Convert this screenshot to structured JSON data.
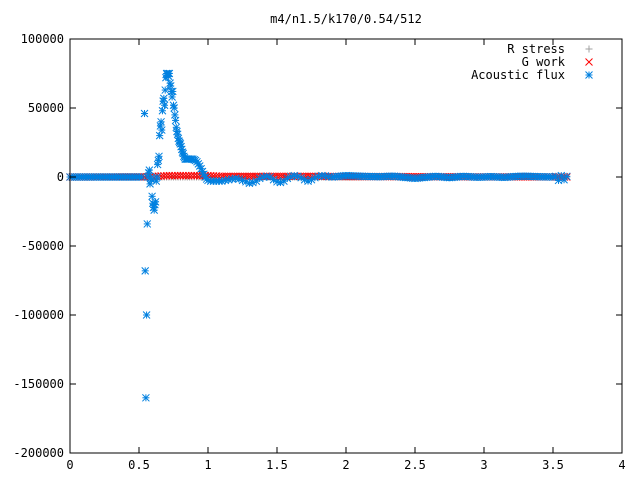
{
  "chart_data": {
    "type": "scatter",
    "title": "m4/n1.5/k170/0.54/512",
    "xlabel": "",
    "ylabel": "",
    "xlim": [
      0,
      4
    ],
    "ylim": [
      -200000,
      100000
    ],
    "xticks": [
      0,
      0.5,
      1,
      1.5,
      2,
      2.5,
      3,
      3.5,
      4
    ],
    "xtick_labels": [
      "0",
      "0.5",
      "1",
      "1.5",
      "2",
      "2.5",
      "3",
      "3.5",
      "4"
    ],
    "yticks": [
      -200000,
      -150000,
      -100000,
      -50000,
      0,
      50000,
      100000
    ],
    "ytick_labels": [
      "-200000",
      "-150000",
      "-100000",
      "-50000",
      "0",
      "50000",
      "100000"
    ],
    "grid": false,
    "legend_position": "top-right",
    "series": [
      {
        "name": "R stress",
        "marker": "plus",
        "color": "#a0a0a0",
        "x": [
          0.0,
          0.2,
          0.4,
          0.5,
          0.6,
          0.8,
          1.0,
          1.5,
          2.0,
          2.5,
          3.0,
          3.5,
          3.6
        ],
        "y": [
          0,
          0,
          0,
          0,
          0,
          0,
          0,
          0,
          0,
          0,
          0,
          0,
          0
        ]
      },
      {
        "name": "G work",
        "marker": "cross",
        "color": "#ff0000",
        "x": [
          0.0,
          0.54,
          0.56,
          0.58,
          0.6,
          0.62,
          0.64,
          0.66,
          0.68,
          0.7,
          0.72,
          0.74,
          0.76,
          0.78,
          0.8,
          0.82,
          0.84,
          0.86,
          0.88,
          0.9,
          0.92,
          0.94,
          0.96,
          0.98,
          1.0,
          1.02,
          1.04,
          1.06,
          1.08,
          1.1,
          1.15,
          1.2,
          1.25,
          1.3,
          1.35,
          1.4,
          1.45,
          1.5,
          1.55,
          1.6,
          1.65,
          1.7,
          1.75,
          1.8,
          1.85,
          1.9,
          2.0,
          2.1,
          2.2,
          2.3,
          2.4,
          2.5,
          2.6,
          2.7,
          2.8,
          2.9,
          3.0,
          3.2,
          3.4,
          3.6
        ],
        "y": [
          0,
          100,
          200,
          300,
          400,
          500,
          600,
          700,
          800,
          900,
          1000,
          1000,
          1000,
          1000,
          1000,
          1000,
          1000,
          1000,
          1000,
          1000,
          1000,
          1000,
          1000,
          1000,
          1000,
          900,
          800,
          700,
          600,
          500,
          500,
          500,
          500,
          500,
          500,
          500,
          500,
          500,
          500,
          500,
          500,
          500,
          500,
          500,
          400,
          400,
          300,
          300,
          300,
          300,
          300,
          200,
          200,
          200,
          200,
          100,
          100,
          100,
          100,
          0
        ]
      },
      {
        "name": "Acoustic flux",
        "marker": "star",
        "color": "#0080e0",
        "x": [
          0.0,
          0.05,
          0.1,
          0.15,
          0.2,
          0.25,
          0.3,
          0.35,
          0.4,
          0.45,
          0.5,
          0.52,
          0.54,
          0.545,
          0.55,
          0.555,
          0.56,
          0.565,
          0.57,
          0.575,
          0.58,
          0.585,
          0.59,
          0.595,
          0.6,
          0.605,
          0.61,
          0.615,
          0.62,
          0.625,
          0.63,
          0.635,
          0.64,
          0.645,
          0.65,
          0.655,
          0.66,
          0.665,
          0.67,
          0.675,
          0.68,
          0.685,
          0.69,
          0.695,
          0.7,
          0.705,
          0.71,
          0.715,
          0.72,
          0.725,
          0.73,
          0.735,
          0.74,
          0.745,
          0.75,
          0.755,
          0.76,
          0.765,
          0.77,
          0.775,
          0.78,
          0.785,
          0.79,
          0.795,
          0.8,
          0.805,
          0.81,
          0.815,
          0.82,
          0.825,
          0.83,
          0.835,
          0.84,
          0.845,
          0.85,
          0.855,
          0.86,
          0.87,
          0.88,
          0.89,
          0.9,
          0.91,
          0.92,
          0.93,
          0.94,
          0.95,
          0.96,
          0.97,
          0.98,
          0.99,
          1.0,
          1.02,
          1.04,
          1.06,
          1.08,
          1.1,
          1.125,
          1.15,
          1.175,
          1.2,
          1.225,
          1.25,
          1.275,
          1.3,
          1.325,
          1.35,
          1.375,
          1.4,
          1.425,
          1.45,
          1.475,
          1.5,
          1.525,
          1.55,
          1.575,
          1.6,
          1.625,
          1.65,
          1.675,
          1.7,
          1.725,
          1.75,
          1.775,
          1.8,
          1.825,
          1.85,
          1.875,
          1.9,
          1.95,
          2.0,
          2.05,
          2.1,
          2.15,
          2.2,
          2.25,
          2.3,
          2.35,
          2.4,
          2.45,
          2.5,
          2.55,
          2.6,
          2.65,
          2.7,
          2.75,
          2.8,
          2.85,
          2.9,
          2.95,
          3.0,
          3.05,
          3.1,
          3.15,
          3.2,
          3.25,
          3.3,
          3.35,
          3.4,
          3.45,
          3.5,
          3.52,
          3.54,
          3.56,
          3.58,
          3.6
        ],
        "y": [
          0,
          0,
          0,
          0,
          0,
          0,
          0,
          0,
          0,
          0,
          0,
          0,
          46000,
          -68000,
          -160000,
          -100000,
          -34000,
          0,
          3000,
          5000,
          -5000,
          -1000,
          -2000,
          -14000,
          -19000,
          -22000,
          -24000,
          -20000,
          -18000,
          -3000,
          0,
          9000,
          12000,
          15000,
          30000,
          37000,
          40000,
          34000,
          48000,
          55000,
          57000,
          52000,
          63000,
          72000,
          75000,
          74000,
          75000,
          73000,
          75000,
          68000,
          66000,
          62000,
          58000,
          62000,
          52000,
          50000,
          45000,
          41000,
          36000,
          33000,
          31000,
          28000,
          26000,
          25000,
          24000,
          22000,
          20000,
          18000,
          17000,
          15000,
          14000,
          13000,
          13000,
          13000,
          13000,
          13000,
          13000,
          13000,
          13000,
          13000,
          12500,
          12000,
          11000,
          9500,
          8000,
          6000,
          4000,
          2000,
          0,
          -1500,
          -2500,
          -3000,
          -3000,
          -3000,
          -3000,
          -3000,
          -2500,
          -2000,
          -1500,
          -1000,
          -1500,
          -2500,
          -3500,
          -4500,
          -4000,
          -3000,
          -1000,
          0,
          500,
          0,
          -2000,
          -3500,
          -4000,
          -3000,
          -1000,
          500,
          1000,
          500,
          -500,
          -2000,
          -3000,
          -2000,
          -500,
          500,
          1000,
          800,
          200,
          0,
          500,
          1000,
          800,
          600,
          400,
          300,
          200,
          500,
          600,
          0,
          -500,
          -1000,
          -500,
          0,
          500,
          0,
          -500,
          0,
          500,
          200,
          -200,
          0,
          300,
          0,
          -300,
          200,
          500,
          600,
          400,
          200,
          100,
          0,
          500,
          -2500,
          1000,
          -2000,
          500
        ]
      }
    ]
  }
}
